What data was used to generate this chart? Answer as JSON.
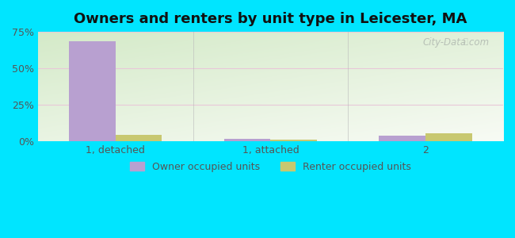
{
  "title": "Owners and renters by unit type in Leicester, MA",
  "categories": [
    "1, detached",
    "1, attached",
    "2"
  ],
  "owner_values": [
    68.5,
    1.5,
    4.0
  ],
  "renter_values": [
    4.5,
    1.2,
    5.5
  ],
  "owner_color": "#b8a0d0",
  "renter_color": "#c8c870",
  "ylim": [
    0,
    75
  ],
  "yticks": [
    0,
    25,
    50,
    75
  ],
  "ytick_labels": [
    "0%",
    "25%",
    "50%",
    "75%"
  ],
  "bar_width": 0.3,
  "outer_bg": "#00e5ff",
  "title_fontsize": 13,
  "watermark": "City-Data.com",
  "bg_top_left": "#d4eac8",
  "bg_bottom_right": "#f5faf0",
  "grid_color": "#e8c8d8",
  "separator_color": "#bbbbbb"
}
